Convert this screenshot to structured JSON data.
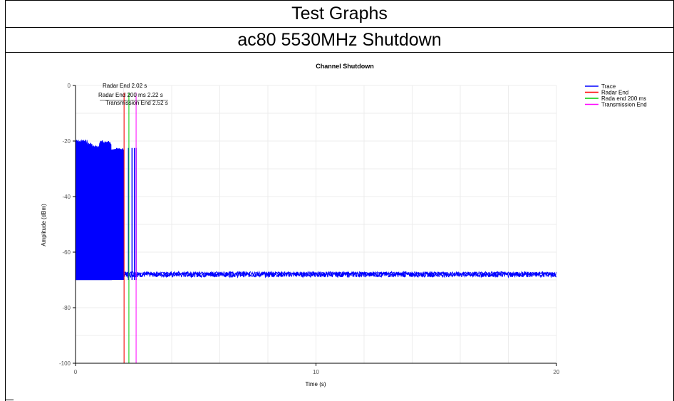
{
  "page": {
    "header_title": "Test Graphs",
    "subtitle": "ac80 5530MHz Shutdown"
  },
  "chart_data": {
    "type": "line",
    "title": "Channel Shutdown",
    "xlabel": "Time (s)",
    "ylabel": "Amplitude (dBm)",
    "xlim": [
      0,
      20
    ],
    "ylim": [
      -100,
      0
    ],
    "x_ticks": [
      "0",
      "10",
      "20"
    ],
    "y_ticks": [
      "0",
      "-20",
      "-40",
      "-60",
      "-80",
      "-100"
    ],
    "grid": true,
    "legend_position": "top-right",
    "colors": {
      "trace": "#0000ff",
      "radar_end": "#ff0000",
      "rada_end_200": "#00cc00",
      "transmission_end": "#ff00ff"
    },
    "series": [
      {
        "name": "Trace",
        "description_points": [
          {
            "x": 0.0,
            "y_high": -19.5,
            "y_low": -70
          },
          {
            "x": 0.5,
            "y_high": -20.5,
            "y_low": -70
          },
          {
            "x": 0.7,
            "y_high": -21.5,
            "y_low": -70
          },
          {
            "x": 1.0,
            "y_high": -19.8,
            "y_low": -70
          },
          {
            "x": 1.4,
            "y_high": -20.2,
            "y_low": -70
          },
          {
            "x": 1.5,
            "y_high": -22.5,
            "y_low": -70
          },
          {
            "x": 2.0,
            "y_high": -22.5,
            "y_low": -70
          },
          {
            "x": 2.52,
            "y_high": -22.5,
            "y_low": -70
          },
          {
            "x": 2.6,
            "y_high": -67.5,
            "y_low": -70
          },
          {
            "x": 20.0,
            "y_high": -67.5,
            "y_low": -70
          }
        ],
        "pulses_after_radar": [
          2.2,
          2.35,
          2.45,
          2.52
        ]
      }
    ],
    "markers": [
      {
        "name": "Radar End",
        "x": 2.02,
        "label": "Radar End 2.02 s"
      },
      {
        "name": "Rada end 200 ms",
        "x": 2.22,
        "label": "Radar End 200 ms 2.22 s"
      },
      {
        "name": "Transmission End",
        "x": 2.52,
        "label": "Transmission End 2.52 s"
      }
    ],
    "legend": [
      "Trace",
      "Radar End",
      "Rada end 200 ms",
      "Transmission End"
    ]
  }
}
